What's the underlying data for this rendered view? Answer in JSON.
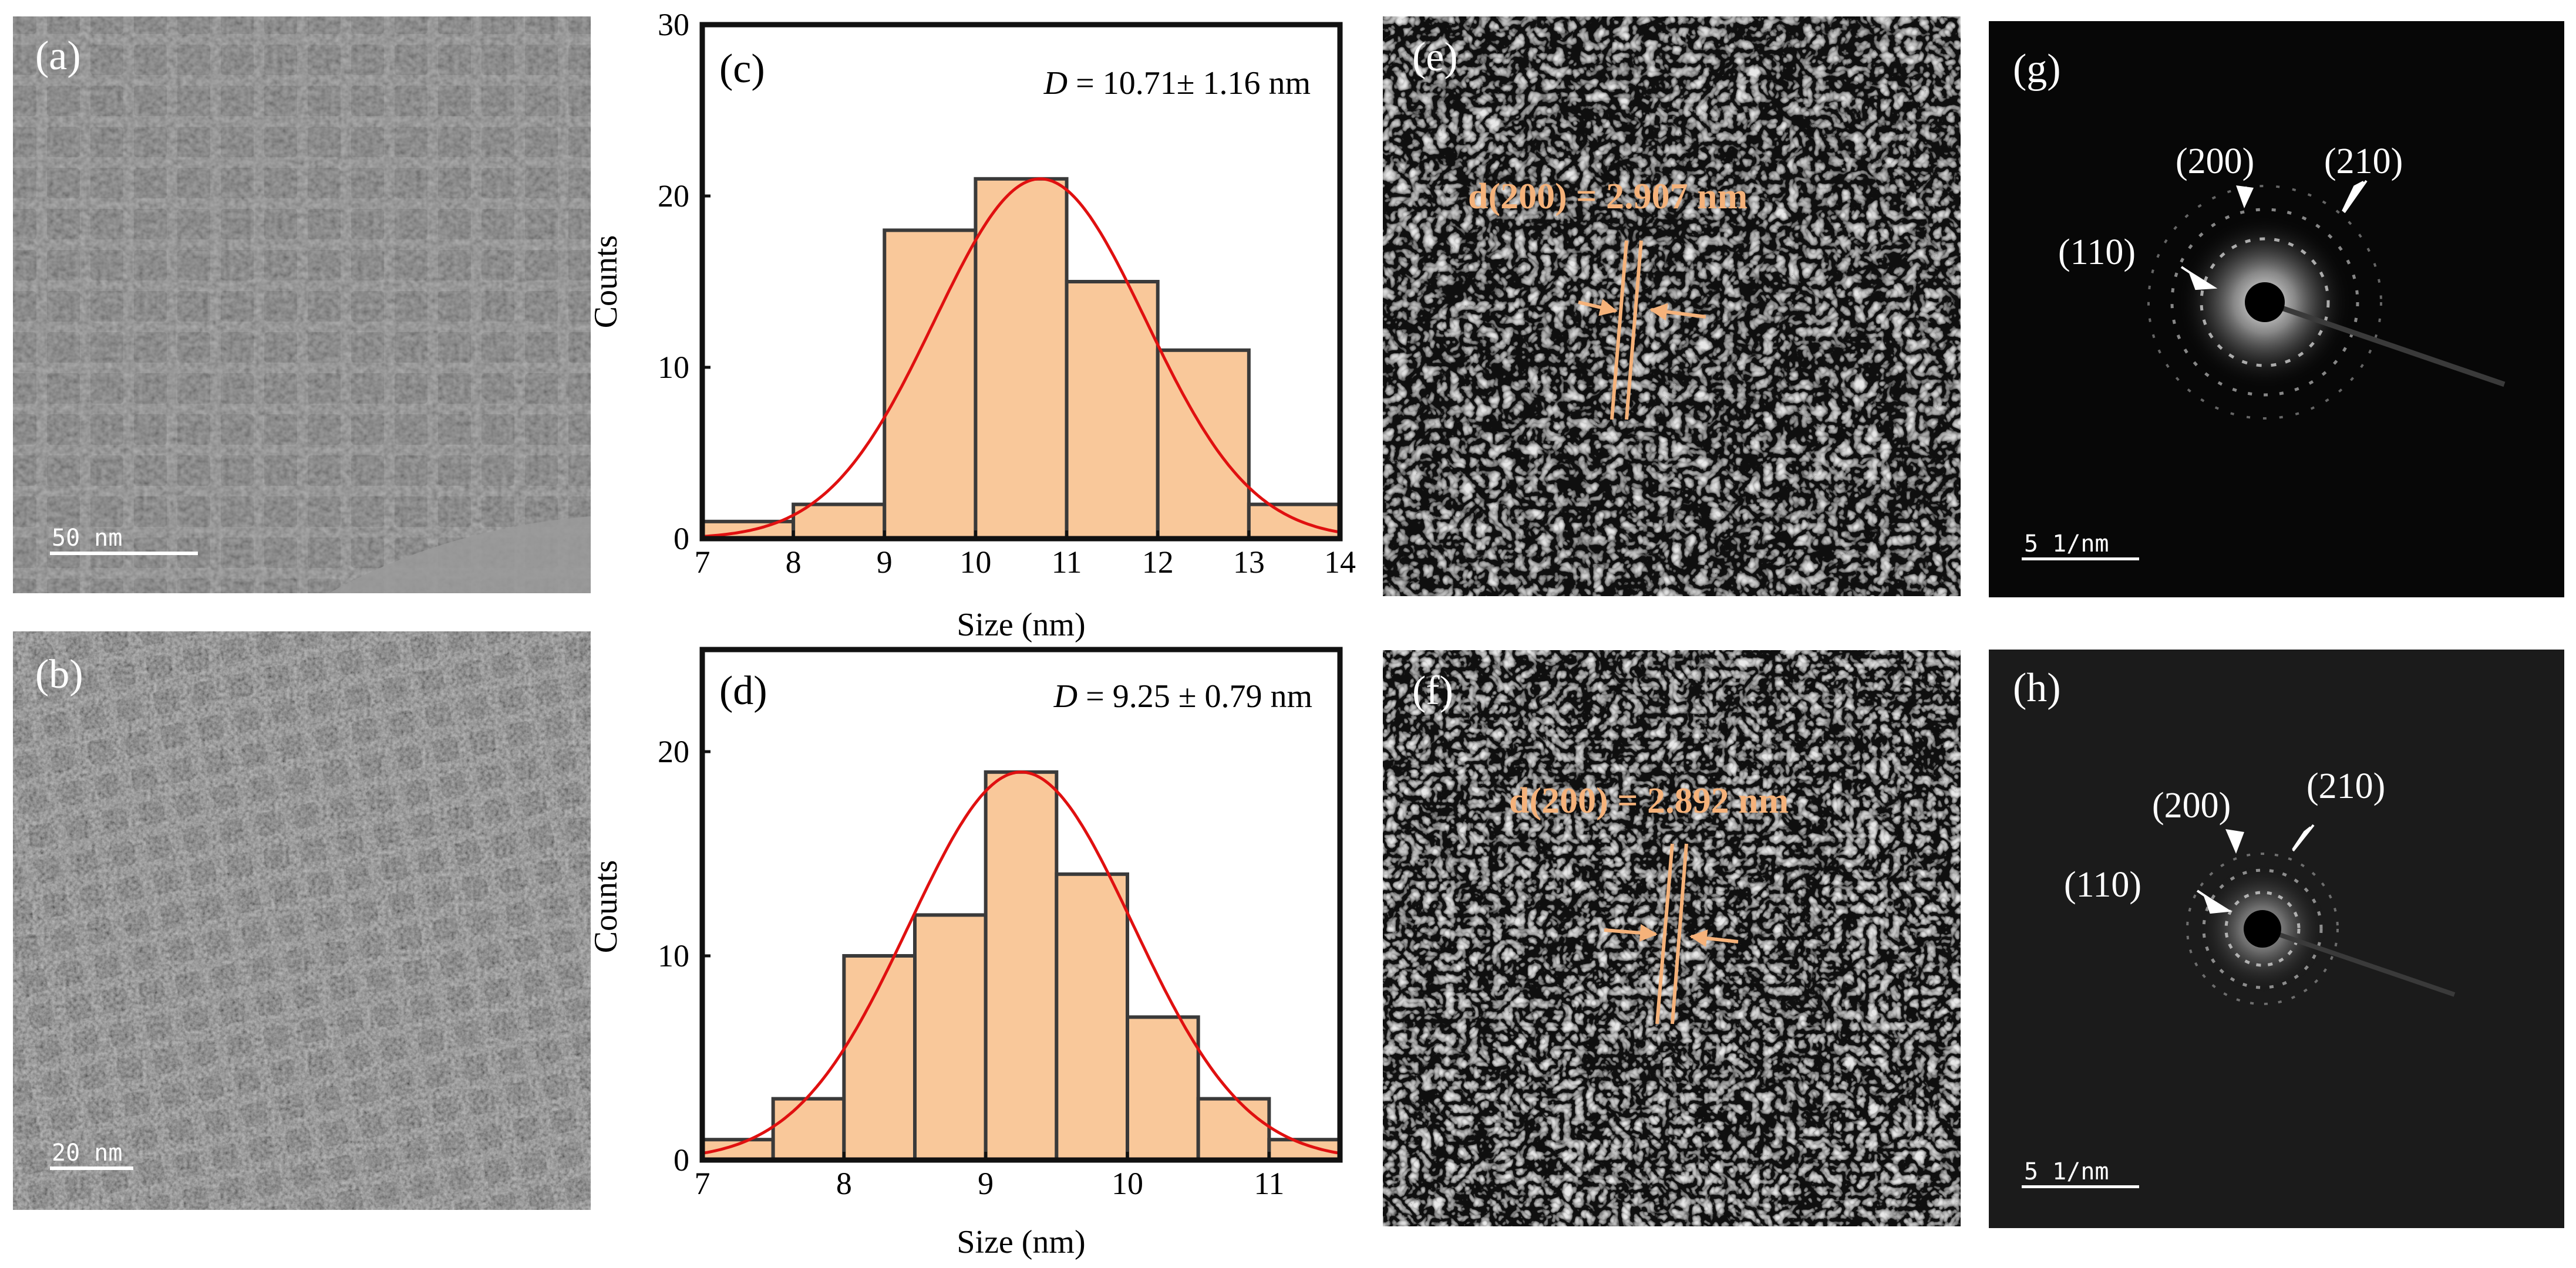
{
  "panels": {
    "a": {
      "label": "(a)",
      "scale_bar": "50 nm"
    },
    "b": {
      "label": "(b)",
      "scale_bar": "20 nm"
    },
    "e": {
      "label": "(e)",
      "spacing": "d(200) = 2.907 nm"
    },
    "f": {
      "label": "(f)",
      "spacing": "d(200) = 2.892 nm"
    },
    "g": {
      "label": "(g)",
      "scale_bar": "5 1/nm",
      "rings": [
        "(200)",
        "(210)",
        "(110)"
      ]
    },
    "h": {
      "label": "(h)",
      "scale_bar": "5 1/nm",
      "rings": [
        "(200)",
        "(210)",
        "(110)"
      ]
    }
  },
  "chart_data": [
    {
      "id": "c",
      "label": "(c)",
      "type": "bar",
      "annotation_symbol": "D",
      "annotation_value": " = 10.71± 1.16 nm",
      "xlabel": "Size (nm)",
      "ylabel": "Counts",
      "xlim": [
        7,
        14
      ],
      "ylim": [
        0,
        30
      ],
      "xticks": [
        7,
        8,
        9,
        10,
        11,
        12,
        13,
        14
      ],
      "yticks": [
        0,
        10,
        20,
        30
      ],
      "bins": [
        {
          "start": 7,
          "end": 8,
          "count": 1
        },
        {
          "start": 8,
          "end": 9,
          "count": 2
        },
        {
          "start": 9,
          "end": 10,
          "count": 18
        },
        {
          "start": 10,
          "end": 11,
          "count": 21
        },
        {
          "start": 11,
          "end": 12,
          "count": 15
        },
        {
          "start": 12,
          "end": 13,
          "count": 11
        },
        {
          "start": 13,
          "end": 14,
          "count": 2
        }
      ],
      "fit": {
        "type": "gaussian",
        "mean": 10.71,
        "sigma": 1.16,
        "amplitude": 21
      },
      "colors": {
        "bar": "#f9c89a",
        "edge": "#3a3a3a",
        "fit": "#e01010"
      }
    },
    {
      "id": "d",
      "label": "(d)",
      "type": "bar",
      "annotation_symbol": "D",
      "annotation_value": " = 9.25 ± 0.79 nm",
      "xlabel": "Size (nm)",
      "ylabel": "Counts",
      "xlim": [
        7,
        11.5
      ],
      "ylim": [
        0,
        25
      ],
      "xticks": [
        7,
        8,
        9,
        10,
        11
      ],
      "yticks": [
        0,
        10,
        20
      ],
      "bins": [
        {
          "start": 7.0,
          "end": 7.5,
          "count": 1
        },
        {
          "start": 7.5,
          "end": 8.0,
          "count": 3
        },
        {
          "start": 8.0,
          "end": 8.5,
          "count": 10
        },
        {
          "start": 8.5,
          "end": 9.0,
          "count": 12
        },
        {
          "start": 9.0,
          "end": 9.5,
          "count": 19
        },
        {
          "start": 9.5,
          "end": 10.0,
          "count": 14
        },
        {
          "start": 10.0,
          "end": 10.5,
          "count": 7
        },
        {
          "start": 10.5,
          "end": 11.0,
          "count": 3
        },
        {
          "start": 11.0,
          "end": 11.5,
          "count": 1
        }
      ],
      "fit": {
        "type": "gaussian",
        "mean": 9.25,
        "sigma": 0.79,
        "amplitude": 19
      },
      "colors": {
        "bar": "#f9c89a",
        "edge": "#3a3a3a",
        "fit": "#e01010"
      }
    }
  ]
}
